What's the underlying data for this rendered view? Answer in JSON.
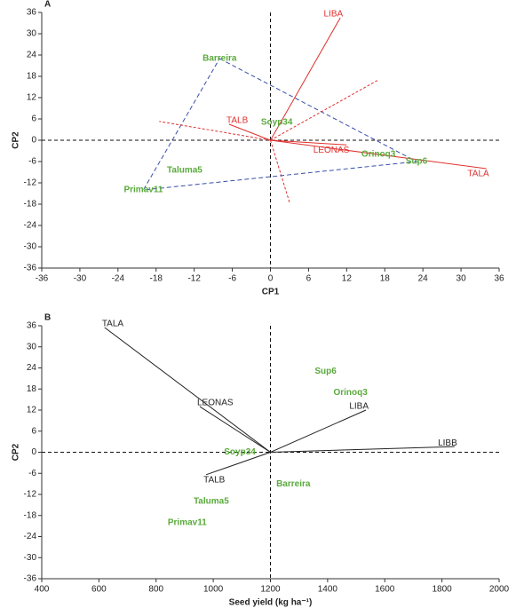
{
  "chart_data": [
    {
      "type": "biplot",
      "title": "A",
      "xlabel": "CP1",
      "ylabel": "CP2",
      "xlim": [
        -36,
        36
      ],
      "xticks": [
        -36,
        -30,
        -24,
        -18,
        -12,
        -6,
        0,
        6,
        12,
        18,
        24,
        30,
        36
      ],
      "ylim": [
        -36,
        36
      ],
      "yticks": [
        -36,
        -30,
        -24,
        -18,
        -12,
        -6,
        0,
        6,
        12,
        18,
        24,
        30,
        36
      ],
      "origin": {
        "x": 0,
        "y": 0
      },
      "point_color": "#5aaa3c",
      "vector_color": "#e0312f",
      "polygon_color": "#3a4fa8",
      "sector_color": "#e0312f",
      "points": [
        {
          "label": "Barreira",
          "x": -8,
          "y": 23
        },
        {
          "label": "Soyp34",
          "x": 1,
          "y": 5
        },
        {
          "label": "Taluma5",
          "x": -13.5,
          "y": -8.5
        },
        {
          "label": "Primav11",
          "x": -20,
          "y": -14
        },
        {
          "label": "Orinoq3",
          "x": 17,
          "y": -4
        },
        {
          "label": "Sup6",
          "x": 23,
          "y": -6
        }
      ],
      "vectors": [
        {
          "label": "LIBA",
          "x": 11,
          "y": 34.5
        },
        {
          "label": "TALB",
          "x": -6.5,
          "y": 4.5
        },
        {
          "label": "LEONAS",
          "x": 12,
          "y": -1.3
        },
        {
          "label": "TALA",
          "x": 34,
          "y": -8
        }
      ],
      "polygon": [
        0,
        5,
        3
      ],
      "sectors": [
        {
          "x": 17,
          "y": 17
        },
        {
          "x": -17.5,
          "y": 5.3
        },
        {
          "x": 3,
          "y": -17.5
        }
      ]
    },
    {
      "type": "biplot",
      "title": "B",
      "xlabel": "Seed yield (kg ha⁻¹)",
      "ylabel": "CP2",
      "xlim": [
        400,
        2000
      ],
      "xticks": [
        400,
        600,
        800,
        1000,
        1200,
        1400,
        1600,
        1800,
        2000
      ],
      "ylim": [
        -36,
        36
      ],
      "yticks": [
        -36,
        -30,
        -24,
        -18,
        -12,
        -6,
        0,
        6,
        12,
        18,
        24,
        30,
        36
      ],
      "origin": {
        "x": 1200,
        "y": 0
      },
      "point_color": "#5aaa3c",
      "vector_color": "#222222",
      "points": [
        {
          "label": "Sup6",
          "x": 1393,
          "y": 23
        },
        {
          "label": "Orinoq3",
          "x": 1480,
          "y": 17
        },
        {
          "label": "Soyp34",
          "x": 1093,
          "y": 0
        },
        {
          "label": "Barreira",
          "x": 1280,
          "y": -9
        },
        {
          "label": "Taluma5",
          "x": 993,
          "y": -14
        },
        {
          "label": "Primav11",
          "x": 909,
          "y": -20
        }
      ],
      "vectors": [
        {
          "label": "TALA",
          "x": 620,
          "y": 35.5
        },
        {
          "label": "LEONAS",
          "x": 953,
          "y": 13
        },
        {
          "label": "LIBA",
          "x": 1534,
          "y": 12
        },
        {
          "label": "LIBB",
          "x": 1844,
          "y": 1.6
        },
        {
          "label": "TALB",
          "x": 975,
          "y": -6.4
        }
      ]
    }
  ]
}
